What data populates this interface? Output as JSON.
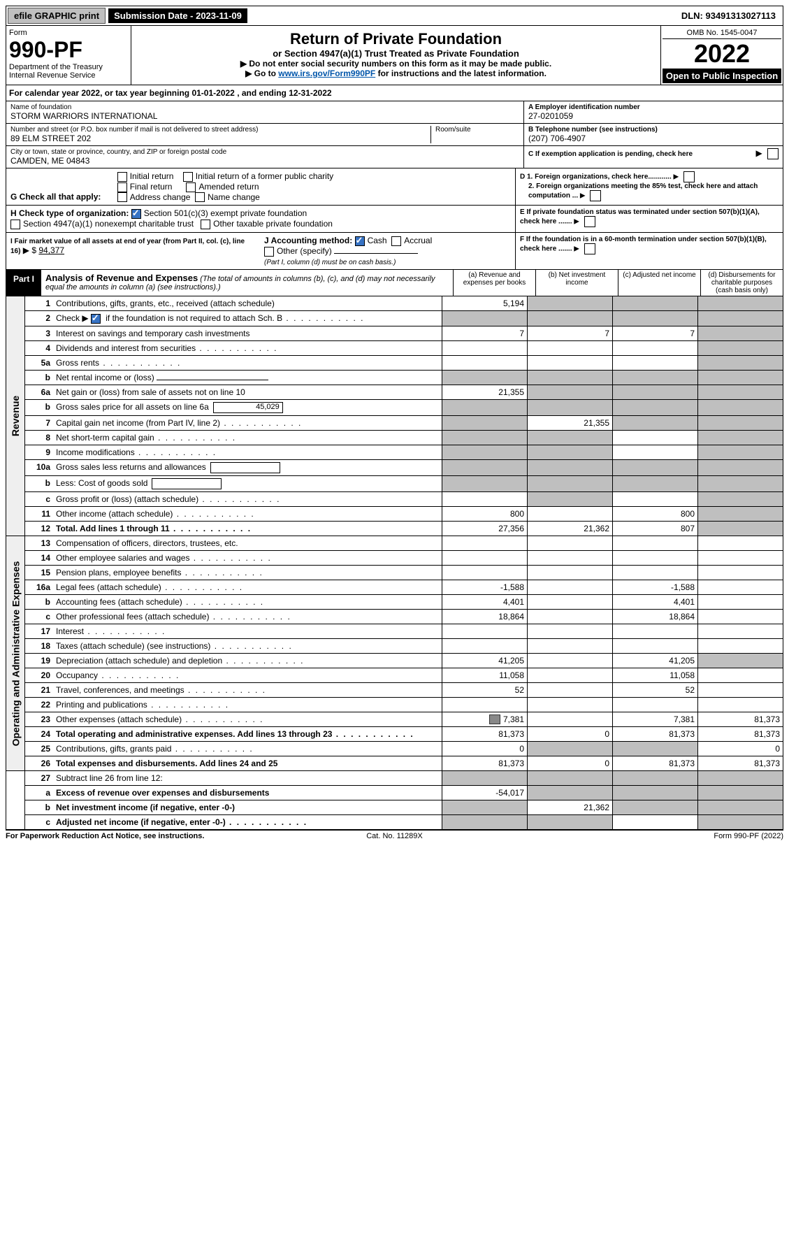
{
  "top": {
    "efile": "efile GRAPHIC print",
    "subdate_label": "Submission Date - 2023-11-09",
    "dln": "DLN: 93491313027113"
  },
  "header": {
    "form_label": "Form",
    "form_number": "990-PF",
    "dept1": "Department of the Treasury",
    "dept2": "Internal Revenue Service",
    "title": "Return of Private Foundation",
    "sub": "or Section 4947(a)(1) Trust Treated as Private Foundation",
    "note1": "▶ Do not enter social security numbers on this form as it may be made public.",
    "note2_pre": "▶ Go to ",
    "note2_link": "www.irs.gov/Form990PF",
    "note2_post": " for instructions and the latest information.",
    "omb": "OMB No. 1545-0047",
    "year": "2022",
    "open": "Open to Public Inspection"
  },
  "cal": {
    "text_pre": "For calendar year 2022, or tax year beginning ",
    "begin": "01-01-2022",
    "mid": " , and ending ",
    "end": "12-31-2022"
  },
  "id": {
    "name_label": "Name of foundation",
    "name": "STORM WARRIORS INTERNATIONAL",
    "street_label": "Number and street (or P.O. box number if mail is not delivered to street address)",
    "street": "89 ELM STREET 202",
    "room_label": "Room/suite",
    "city_label": "City or town, state or province, country, and ZIP or foreign postal code",
    "city": "CAMDEN, ME  04843",
    "a_label": "A Employer identification number",
    "a_val": "27-0201059",
    "b_label": "B Telephone number (see instructions)",
    "b_val": "(207) 706-4907",
    "c_label": "C If exemption application is pending, check here"
  },
  "g": {
    "label": "G Check all that apply:",
    "o1": "Initial return",
    "o2": "Final return",
    "o3": "Address change",
    "o4": "Initial return of a former public charity",
    "o5": "Amended return",
    "o6": "Name change"
  },
  "d": {
    "d1": "D 1. Foreign organizations, check here............",
    "d2": "2. Foreign organizations meeting the 85% test, check here and attach computation ..."
  },
  "h": {
    "label": "H Check type of organization:",
    "o1": "Section 501(c)(3) exempt private foundation",
    "o2": "Section 4947(a)(1) nonexempt charitable trust",
    "o3": "Other taxable private foundation"
  },
  "e": {
    "label": "E  If private foundation status was terminated under section 507(b)(1)(A), check here ......."
  },
  "i": {
    "label": "I Fair market value of all assets at end of year (from Part II, col. (c), line 16)",
    "val": "94,377"
  },
  "j": {
    "label": "J Accounting method:",
    "cash": "Cash",
    "accrual": "Accrual",
    "other": "Other (specify)",
    "note": "(Part I, column (d) must be on cash basis.)"
  },
  "f": {
    "label": "F  If the foundation is in a 60-month termination under section 507(b)(1)(B), check here ......."
  },
  "part1": {
    "tag": "Part I",
    "title": "Analysis of Revenue and Expenses",
    "sub": "(The total of amounts in columns (b), (c), and (d) may not necessarily equal the amounts in column (a) (see instructions).)",
    "ca": "(a)   Revenue and expenses per books",
    "cb": "(b)   Net investment income",
    "cc": "(c)   Adjusted net income",
    "cd": "(d)  Disbursements for charitable purposes (cash basis only)"
  },
  "vtabs": {
    "rev": "Revenue",
    "exp": "Operating and Administrative Expenses"
  },
  "lines": {
    "l1": {
      "n": "1",
      "d": "Contributions, gifts, grants, etc., received (attach schedule)",
      "a": "5,194"
    },
    "l2": {
      "n": "2",
      "d_pre": "Check ▶ ",
      "d_post": " if the foundation is not required to attach Sch. B",
      "dots": true
    },
    "l3": {
      "n": "3",
      "d": "Interest on savings and temporary cash investments",
      "a": "7",
      "b": "7",
      "c": "7"
    },
    "l4": {
      "n": "4",
      "d": "Dividends and interest from securities"
    },
    "l5a": {
      "n": "5a",
      "d": "Gross rents"
    },
    "l5b": {
      "n": "b",
      "d": "Net rental income or (loss)"
    },
    "l6a": {
      "n": "6a",
      "d": "Net gain or (loss) from sale of assets not on line 10",
      "a": "21,355"
    },
    "l6b": {
      "n": "b",
      "d": "Gross sales price for all assets on line 6a",
      "inline": "45,029"
    },
    "l7": {
      "n": "7",
      "d": "Capital gain net income (from Part IV, line 2)",
      "b": "21,355"
    },
    "l8": {
      "n": "8",
      "d": "Net short-term capital gain"
    },
    "l9": {
      "n": "9",
      "d": "Income modifications"
    },
    "l10a": {
      "n": "10a",
      "d": "Gross sales less returns and allowances"
    },
    "l10b": {
      "n": "b",
      "d": "Less: Cost of goods sold"
    },
    "l10c": {
      "n": "c",
      "d": "Gross profit or (loss) (attach schedule)"
    },
    "l11": {
      "n": "11",
      "d": "Other income (attach schedule)",
      "a": "800",
      "c": "800"
    },
    "l12": {
      "n": "12",
      "d": "Total. Add lines 1 through 11",
      "a": "27,356",
      "b": "21,362",
      "c": "807",
      "bold": true
    },
    "l13": {
      "n": "13",
      "d": "Compensation of officers, directors, trustees, etc."
    },
    "l14": {
      "n": "14",
      "d": "Other employee salaries and wages"
    },
    "l15": {
      "n": "15",
      "d": "Pension plans, employee benefits"
    },
    "l16a": {
      "n": "16a",
      "d": "Legal fees (attach schedule)",
      "a": "-1,588",
      "c": "-1,588"
    },
    "l16b": {
      "n": "b",
      "d": "Accounting fees (attach schedule)",
      "a": "4,401",
      "c": "4,401"
    },
    "l16c": {
      "n": "c",
      "d": "Other professional fees (attach schedule)",
      "a": "18,864",
      "c": "18,864"
    },
    "l17": {
      "n": "17",
      "d": "Interest"
    },
    "l18": {
      "n": "18",
      "d": "Taxes (attach schedule) (see instructions)"
    },
    "l19": {
      "n": "19",
      "d": "Depreciation (attach schedule) and depletion",
      "a": "41,205",
      "c": "41,205"
    },
    "l20": {
      "n": "20",
      "d": "Occupancy",
      "a": "11,058",
      "c": "11,058"
    },
    "l21": {
      "n": "21",
      "d": "Travel, conferences, and meetings",
      "a": "52",
      "c": "52"
    },
    "l22": {
      "n": "22",
      "d": "Printing and publications"
    },
    "l23": {
      "n": "23",
      "d": "Other expenses (attach schedule)",
      "a": "7,381",
      "c": "7,381",
      "dd": "81,373",
      "icon": true
    },
    "l24": {
      "n": "24",
      "d": "Total operating and administrative expenses. Add lines 13 through 23",
      "a": "81,373",
      "b": "0",
      "c": "81,373",
      "dd": "81,373",
      "bold": true
    },
    "l25": {
      "n": "25",
      "d": "Contributions, gifts, grants paid",
      "a": "0",
      "dd": "0"
    },
    "l26": {
      "n": "26",
      "d": "Total expenses and disbursements. Add lines 24 and 25",
      "a": "81,373",
      "b": "0",
      "c": "81,373",
      "dd": "81,373",
      "bold": true
    },
    "l27": {
      "n": "27",
      "d": "Subtract line 26 from line 12:"
    },
    "l27a": {
      "n": "a",
      "d": "Excess of revenue over expenses and disbursements",
      "a": "-54,017",
      "bold": true
    },
    "l27b": {
      "n": "b",
      "d": "Net investment income (if negative, enter -0-)",
      "b": "21,362",
      "bold": true
    },
    "l27c": {
      "n": "c",
      "d": "Adjusted net income (if negative, enter -0-)",
      "bold": true
    }
  },
  "footer": {
    "l": "For Paperwork Reduction Act Notice, see instructions.",
    "m": "Cat. No. 11289X",
    "r": "Form 990-PF (2022)"
  }
}
